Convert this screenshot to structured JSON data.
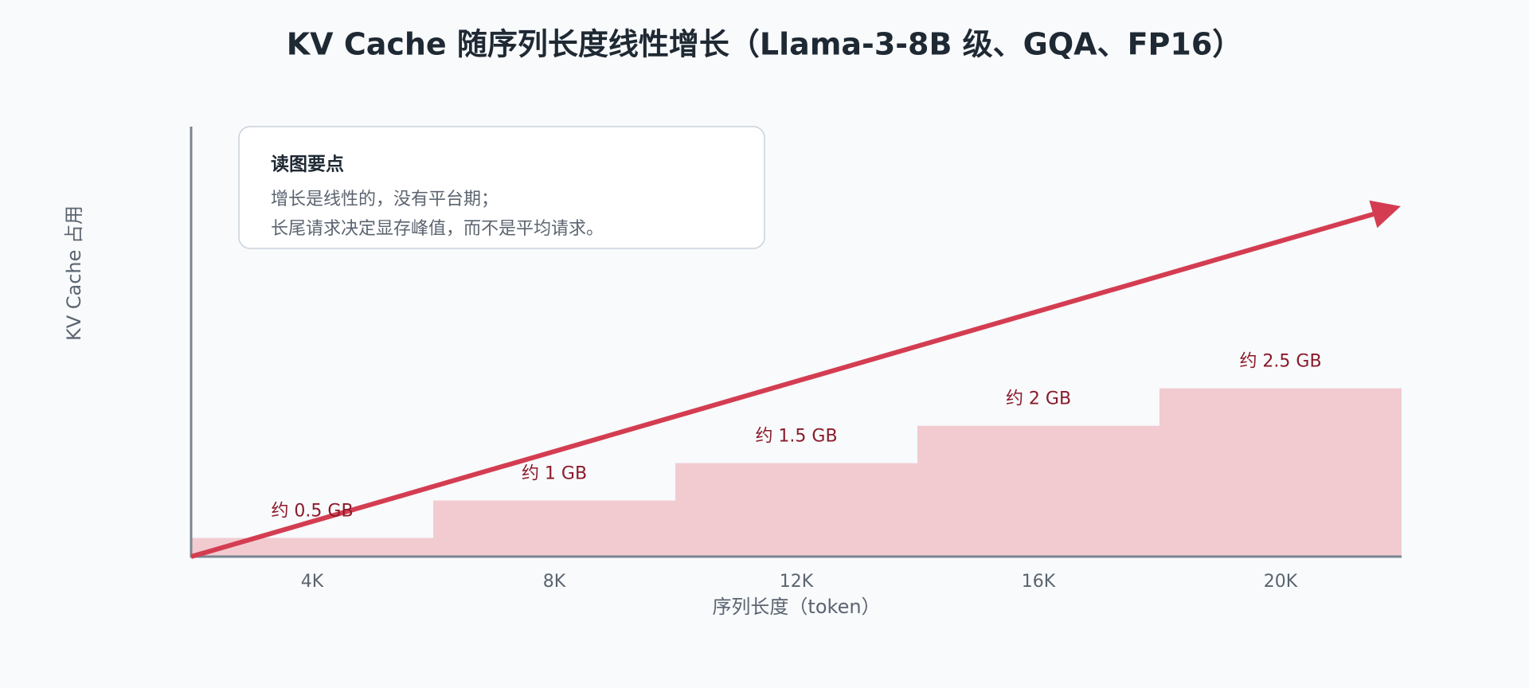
{
  "chart_data": {
    "type": "bar",
    "title": "KV Cache 随序列长度线性增长（Llama-3-8B 级、GQA、FP16）",
    "x_label": "序列长度（token）",
    "y_label": "KV Cache 占用",
    "categories": [
      "4K",
      "8K",
      "12K",
      "16K",
      "20K"
    ],
    "values": [
      0.5,
      1,
      1.5,
      2,
      2.5
    ],
    "value_labels": [
      "约 0.5 GB",
      "约 1 GB",
      "约 1.5 GB",
      "约 2 GB",
      "约 2.5 GB"
    ],
    "color": "#f2cbd0",
    "ylim": [
      0.25,
      6
    ],
    "annotation": {
      "title": "读图要点",
      "lines": [
        "增长是线性的，没有平台期；",
        "长尾请求决定显存峰值，而不是平均请求。"
      ]
    }
  }
}
